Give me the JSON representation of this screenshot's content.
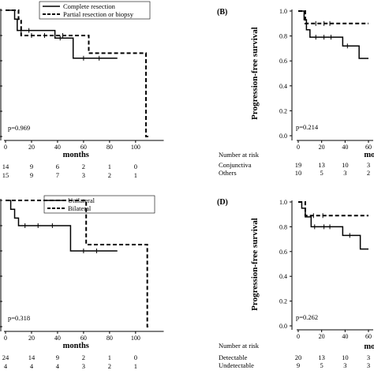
{
  "chart_data": [
    {
      "type": "line",
      "panel_label": "",
      "xlabel": "months",
      "ylabel": "",
      "xlim": [
        0,
        118
      ],
      "ylim": [
        0,
        1
      ],
      "x_ticks": [
        "0",
        "20",
        "40",
        "60",
        "80",
        "100"
      ],
      "y_ticks": [],
      "legend_position": "top-right",
      "p_value": "p=0.969",
      "series": [
        {
          "name": "Complete resection",
          "style": "solid",
          "steps": [
            [
              0,
              1.0
            ],
            [
              7,
              0.93
            ],
            [
              9,
              0.84
            ],
            [
              36,
              0.84
            ],
            [
              38,
              0.78
            ],
            [
              50,
              0.78
            ],
            [
              52,
              0.62
            ],
            [
              86,
              0.62
            ]
          ],
          "censor_x": [
            12,
            18,
            42,
            60,
            72
          ]
        },
        {
          "name": "Partial resection or biopsy",
          "style": "dashed",
          "steps": [
            [
              0,
              1.0
            ],
            [
              10,
              0.93
            ],
            [
              12,
              0.8
            ],
            [
              62,
              0.8
            ],
            [
              64,
              0.66
            ],
            [
              106,
              0.66
            ],
            [
              108,
              0.0
            ],
            [
              110,
              0.0
            ]
          ],
          "censor_x": [
            20,
            30,
            44
          ]
        }
      ],
      "risk_table": {
        "title": "",
        "rows": [
          {
            "label": "",
            "values": [
              "14",
              "9",
              "6",
              "2",
              "1",
              "0"
            ]
          },
          {
            "label": "",
            "values": [
              "15",
              "9",
              "7",
              "3",
              "2",
              "1"
            ]
          }
        ]
      }
    },
    {
      "type": "line",
      "panel_label": "(B)",
      "xlabel": "mont",
      "ylabel": "Progression-free survival",
      "xlim": [
        0,
        60
      ],
      "ylim": [
        0,
        1
      ],
      "x_ticks": [
        "0",
        "20",
        "40",
        "60"
      ],
      "y_ticks": [
        "0.0",
        "0.2",
        "0.4",
        "0.6",
        "0.8",
        "1.0"
      ],
      "p_value": "p=0.214",
      "series": [
        {
          "name": "",
          "style": "solid",
          "steps": [
            [
              0,
              1.0
            ],
            [
              5,
              0.93
            ],
            [
              7,
              0.85
            ],
            [
              10,
              0.79
            ],
            [
              34,
              0.79
            ],
            [
              38,
              0.72
            ],
            [
              48,
              0.72
            ],
            [
              52,
              0.62
            ],
            [
              60,
              0.62
            ]
          ],
          "censor_x": [
            15,
            22,
            28,
            42
          ]
        },
        {
          "name": "",
          "style": "dashed",
          "steps": [
            [
              0,
              1.0
            ],
            [
              6,
              0.9
            ],
            [
              60,
              0.9
            ]
          ],
          "censor_x": [
            15,
            22,
            27
          ]
        }
      ],
      "risk_table": {
        "title": "Number at risk",
        "rows": [
          {
            "label": "Conjunctiva",
            "values": [
              "19",
              "13",
              "10",
              "3"
            ]
          },
          {
            "label": "Others",
            "values": [
              "10",
              "5",
              "3",
              "2"
            ]
          }
        ]
      }
    },
    {
      "type": "line",
      "panel_label": "",
      "xlabel": "months",
      "ylabel": "",
      "xlim": [
        0,
        118
      ],
      "ylim": [
        0,
        1
      ],
      "x_ticks": [
        "0",
        "20",
        "40",
        "60",
        "80",
        "100"
      ],
      "y_ticks": [],
      "legend_position": "top-right",
      "p_value": "p=0.318",
      "series": [
        {
          "name": "Unilateral",
          "style": "solid",
          "steps": [
            [
              0,
              1.0
            ],
            [
              4,
              0.93
            ],
            [
              7,
              0.86
            ],
            [
              10,
              0.8
            ],
            [
              48,
              0.8
            ],
            [
              50,
              0.6
            ],
            [
              86,
              0.6
            ]
          ],
          "censor_x": [
            15,
            25,
            36,
            60,
            70
          ]
        },
        {
          "name": "Bilateral",
          "style": "dashed",
          "steps": [
            [
              0,
              1.0
            ],
            [
              60,
              1.0
            ],
            [
              62,
              0.65
            ],
            [
              107,
              0.65
            ],
            [
              109,
              0.0
            ],
            [
              110,
              0.0
            ]
          ],
          "censor_x": []
        }
      ],
      "risk_table": {
        "title": "",
        "rows": [
          {
            "label": "",
            "values": [
              "24",
              "14",
              "9",
              "2",
              "1",
              "0"
            ]
          },
          {
            "label": "",
            "values": [
              "4",
              "4",
              "4",
              "3",
              "2",
              "1"
            ]
          }
        ]
      }
    },
    {
      "type": "line",
      "panel_label": "(D)",
      "xlabel": "mont",
      "ylabel": "Progression-free survival",
      "xlim": [
        0,
        60
      ],
      "ylim": [
        0,
        1
      ],
      "x_ticks": [
        "0",
        "20",
        "40",
        "60"
      ],
      "y_ticks": [
        "0.0",
        "0.2",
        "0.4",
        "0.6",
        "0.8",
        "1.0"
      ],
      "p_value": "p=0.262",
      "series": [
        {
          "name": "",
          "style": "solid",
          "steps": [
            [
              0,
              1.0
            ],
            [
              3,
              0.95
            ],
            [
              6,
              0.88
            ],
            [
              11,
              0.8
            ],
            [
              34,
              0.8
            ],
            [
              38,
              0.73
            ],
            [
              50,
              0.73
            ],
            [
              53,
              0.62
            ],
            [
              60,
              0.62
            ]
          ],
          "censor_x": [
            14,
            22,
            27,
            44
          ]
        },
        {
          "name": "",
          "style": "dashed",
          "steps": [
            [
              0,
              1.0
            ],
            [
              6,
              0.89
            ],
            [
              60,
              0.89
            ]
          ],
          "censor_x": [
            13,
            21
          ]
        }
      ],
      "risk_table": {
        "title": "Number at risk",
        "rows": [
          {
            "label": "Detectable",
            "values": [
              "20",
              "13",
              "10",
              "3"
            ]
          },
          {
            "label": "Undetectable",
            "values": [
              "9",
              "5",
              "3",
              "3"
            ]
          }
        ]
      }
    }
  ]
}
